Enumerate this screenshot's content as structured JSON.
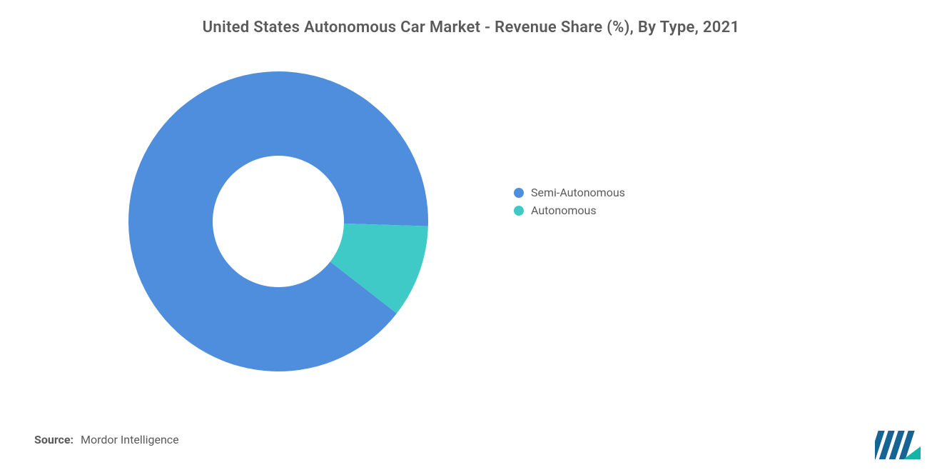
{
  "title": "United States Autonomous Car Market - Revenue Share (%), By Type, 2021",
  "chart": {
    "type": "donut",
    "outer_radius": 210,
    "inner_radius": 92,
    "background_color": "#ffffff",
    "start_angle_deg": 90,
    "direction": "clockwise",
    "slices": [
      {
        "label": "Semi-Autonomous",
        "value": 90,
        "color": "#4f8edc"
      },
      {
        "label": "Autonomous",
        "value": 10,
        "color": "#3fc9c7"
      }
    ]
  },
  "legend": {
    "items": [
      {
        "label": "Semi-Autonomous",
        "color": "#4f8edc"
      },
      {
        "label": "Autonomous",
        "color": "#3fc9c7"
      }
    ],
    "font_size_pt": 12,
    "text_color": "#5a5a5a"
  },
  "footer": {
    "source_label": "Source:",
    "source_value": "Mordor Intelligence",
    "text_color": "#5a5a5a",
    "font_size_pt": 12
  },
  "logo": {
    "bar_color": "#166494",
    "accent_color": "#16b3a8"
  },
  "title_style": {
    "font_size_pt": 17,
    "font_weight": 600,
    "color": "#5a5a5a"
  }
}
